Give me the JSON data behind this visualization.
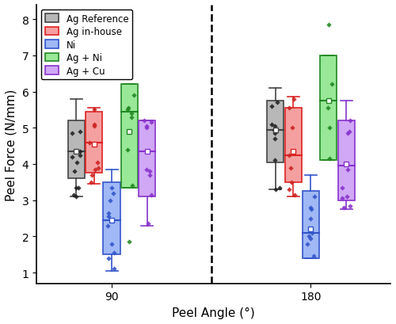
{
  "xlabel": "Peel Angle (°)",
  "ylabel": "Peel Force (N/mm)",
  "ylim": [
    0.7,
    8.4
  ],
  "yticks": [
    1,
    2,
    3,
    4,
    5,
    6,
    7,
    8
  ],
  "angle_labels": [
    "90",
    "180"
  ],
  "legend_labels": [
    "Ag Reference",
    "Ag in-house",
    "Ni",
    "Ag + Ni",
    "Ag + Cu"
  ],
  "colors": {
    "Ag Reference": {
      "face": "#b8b8b8",
      "edge": "#444444",
      "scatter": "#222222"
    },
    "Ag in-house": {
      "face": "#f5a0a0",
      "edge": "#dd2222",
      "scatter": "#cc2222"
    },
    "Ni": {
      "face": "#a0b8f5",
      "edge": "#3355cc",
      "scatter": "#3355cc"
    },
    "Ag + Ni": {
      "face": "#98e898",
      "edge": "#228822",
      "scatter": "#228822"
    },
    "Ag + Cu": {
      "face": "#d0a8f5",
      "edge": "#8833cc",
      "scatter": "#8833cc"
    }
  },
  "box_width": 0.38,
  "groups": {
    "90": {
      "Ag Reference": {
        "whislo": 3.1,
        "q1": 3.6,
        "med": 4.35,
        "mean": 4.35,
        "q3": 5.2,
        "whishi": 5.8,
        "scatter": [
          3.15,
          3.35,
          3.8,
          4.05,
          4.2,
          4.25,
          4.35,
          4.85,
          4.9
        ],
        "fliers": [
          3.1,
          3.35
        ]
      },
      "Ag in-house": {
        "whislo": 3.45,
        "q1": 3.75,
        "med": 4.6,
        "mean": 4.55,
        "q3": 5.45,
        "whishi": 5.55,
        "scatter": [
          3.5,
          3.7,
          3.85,
          3.9,
          4.05,
          4.6,
          5.05,
          5.1,
          5.5
        ],
        "fliers": []
      },
      "Ni": {
        "whislo": 1.05,
        "q1": 1.5,
        "med": 2.45,
        "mean": 2.45,
        "q3": 3.5,
        "whishi": 3.85,
        "scatter": [
          1.1,
          1.4,
          1.55,
          2.3,
          2.55,
          2.65,
          3.0,
          3.2,
          3.35
        ],
        "fliers": [
          1.8
        ]
      },
      "Ag + Ni": {
        "whislo": 3.35,
        "q1": 3.35,
        "med": 5.45,
        "mean": 4.9,
        "q3": 6.2,
        "whishi": 6.2,
        "scatter": [
          3.4,
          4.4,
          5.3,
          5.4,
          5.5,
          5.55,
          5.9
        ],
        "fliers": [
          1.85
        ]
      },
      "Ag + Cu": {
        "whislo": 2.3,
        "q1": 3.1,
        "med": 4.35,
        "mean": 4.35,
        "q3": 5.2,
        "whishi": 5.2,
        "scatter": [
          2.35,
          3.15,
          3.7,
          3.8,
          3.85,
          5.0,
          5.05,
          5.15,
          5.2
        ],
        "fliers": []
      }
    },
    "180": {
      "Ag Reference": {
        "whislo": 3.3,
        "q1": 4.05,
        "med": 4.95,
        "mean": 4.95,
        "q3": 5.75,
        "whishi": 6.1,
        "scatter": [
          3.35,
          4.1,
          4.7,
          4.85,
          4.95,
          5.05,
          5.1,
          5.6,
          5.7
        ],
        "fliers": [
          3.3
        ]
      },
      "Ag in-house": {
        "whislo": 3.1,
        "q1": 3.5,
        "med": 4.25,
        "mean": 4.35,
        "q3": 5.55,
        "whishi": 5.85,
        "scatter": [
          3.15,
          3.3,
          3.5,
          3.9,
          4.25,
          4.35,
          5.0,
          5.55,
          5.8
        ],
        "fliers": []
      },
      "Ni": {
        "whislo": 1.4,
        "q1": 1.4,
        "med": 2.1,
        "mean": 2.2,
        "q3": 3.25,
        "whishi": 3.7,
        "scatter": [
          1.45,
          1.8,
          2.0,
          2.1,
          2.5,
          2.75,
          2.8,
          3.1
        ],
        "fliers": [
          1.95
        ]
      },
      "Ag + Ni": {
        "whislo": 4.1,
        "q1": 4.1,
        "med": 5.75,
        "mean": 5.75,
        "q3": 7.0,
        "whishi": 7.0,
        "scatter": [
          4.15,
          5.0,
          5.55,
          5.75,
          6.2
        ],
        "fliers": [
          7.85
        ]
      },
      "Ag + Cu": {
        "whislo": 2.75,
        "q1": 3.0,
        "med": 3.95,
        "mean": 4.0,
        "q3": 5.2,
        "whishi": 5.75,
        "scatter": [
          2.8,
          2.85,
          3.05,
          3.1,
          3.35,
          3.85,
          4.85,
          4.9,
          5.2
        ],
        "fliers": []
      }
    }
  },
  "group_centers": {
    "90": 2.0,
    "180": 6.5
  },
  "offsets": {
    "Ag Reference": -0.8,
    "Ag in-house": -0.4,
    "Ni": 0.0,
    "Ag + Ni": 0.4,
    "Ag + Cu": 0.8
  },
  "xlim": [
    0.3,
    8.3
  ],
  "dashed_line_x": 4.25,
  "xtick_positions": [
    2.0,
    6.5
  ]
}
